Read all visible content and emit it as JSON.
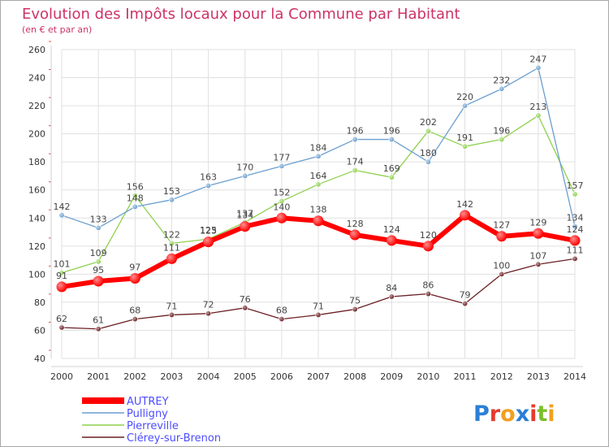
{
  "chart_data": {
    "type": "line",
    "title": "Evolution des Impôts locaux pour la Commune par Habitant",
    "subtitle": "(en € et par an)",
    "xlabel": "",
    "ylabel": "",
    "x": [
      "2000",
      "2001",
      "2002",
      "2003",
      "2004",
      "2005",
      "2006",
      "2007",
      "2008",
      "2009",
      "2010",
      "2011",
      "2012",
      "2013",
      "2014"
    ],
    "ylim": [
      40,
      260
    ],
    "yticks": [
      40,
      60,
      80,
      100,
      120,
      140,
      160,
      180,
      200,
      220,
      240,
      260
    ],
    "grid": true,
    "legend_position": "bottom-left",
    "series": [
      {
        "name": "Clérey-sur-Brenon",
        "color": "#6b1f24",
        "values": [
          62,
          61,
          68,
          71,
          72,
          76,
          68,
          71,
          75,
          84,
          86,
          79,
          100,
          107,
          111
        ]
      },
      {
        "name": "Pierreville",
        "color": "#8fd14f",
        "values": [
          101,
          109,
          156,
          122,
          125,
          137,
          152,
          164,
          174,
          169,
          202,
          191,
          196,
          213,
          157
        ]
      },
      {
        "name": "Pulligny",
        "color": "#6a9fd0",
        "values": [
          142,
          133,
          148,
          153,
          163,
          170,
          177,
          184,
          196,
          196,
          180,
          220,
          232,
          247,
          134
        ]
      },
      {
        "name": "AUTREY",
        "color": "#ff0000",
        "values": [
          91,
          95,
          97,
          111,
          123,
          134,
          140,
          138,
          128,
          124,
          120,
          142,
          127,
          129,
          124
        ]
      }
    ]
  },
  "colors": {
    "grid": "#e0e0e0",
    "axis_text": "#333333",
    "title": "#cc3366",
    "legend_text": "#4d4dff"
  },
  "logo": {
    "text": "Proxiti",
    "letter_colors": [
      "#2b7fd6",
      "#e63b2e",
      "#f0a020",
      "#2b7fd6",
      "#e63b2e",
      "#7bbf2a",
      "#f0a020"
    ]
  }
}
